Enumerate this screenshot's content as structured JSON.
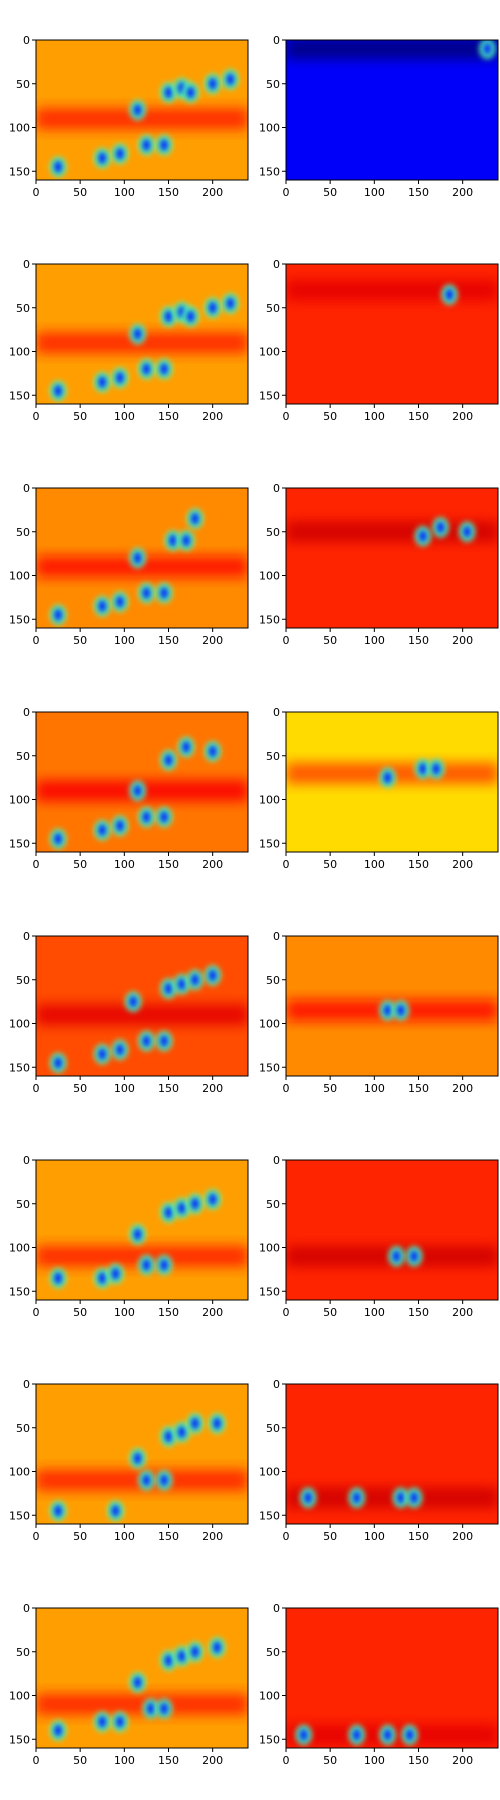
{
  "figure": {
    "rows": 8,
    "cols": 2,
    "x_ticks": [
      "0",
      "50",
      "100",
      "150",
      "200"
    ],
    "y_ticks": [
      "0",
      "50",
      "100",
      "150"
    ],
    "colormap": "jet"
  },
  "chart_data": {
    "type": "heatmap",
    "image_width": 240,
    "image_height": 160,
    "xlim": [
      0,
      240
    ],
    "ylim": [
      160,
      0
    ],
    "grid": false,
    "legend": "none",
    "panels": [
      {
        "row": 0,
        "col": 0,
        "background": 0.72,
        "band": {
          "y": 90,
          "strength": 0.12
        },
        "blobs": [
          [
            25,
            145
          ],
          [
            75,
            135
          ],
          [
            95,
            130
          ],
          [
            115,
            80
          ],
          [
            125,
            120
          ],
          [
            145,
            120
          ],
          [
            150,
            60
          ],
          [
            165,
            55
          ],
          [
            175,
            60
          ],
          [
            200,
            50
          ],
          [
            220,
            45
          ]
        ]
      },
      {
        "row": 0,
        "col": 1,
        "background": 0.12,
        "band": {
          "y": 10,
          "strength": -0.4
        },
        "blobs": [
          [
            228,
            10
          ]
        ]
      },
      {
        "row": 1,
        "col": 0,
        "background": 0.72,
        "band": {
          "y": 90,
          "strength": 0.12
        },
        "blobs": [
          [
            25,
            145
          ],
          [
            75,
            135
          ],
          [
            95,
            130
          ],
          [
            115,
            80
          ],
          [
            125,
            120
          ],
          [
            145,
            120
          ],
          [
            150,
            60
          ],
          [
            165,
            55
          ],
          [
            175,
            60
          ],
          [
            200,
            50
          ],
          [
            220,
            45
          ]
        ]
      },
      {
        "row": 1,
        "col": 1,
        "background": 0.84,
        "band": {
          "y": 30,
          "strength": 0.06
        },
        "blobs": [
          [
            185,
            35
          ]
        ]
      },
      {
        "row": 2,
        "col": 0,
        "background": 0.74,
        "band": {
          "y": 90,
          "strength": 0.12
        },
        "blobs": [
          [
            25,
            145
          ],
          [
            75,
            135
          ],
          [
            95,
            130
          ],
          [
            115,
            80
          ],
          [
            125,
            120
          ],
          [
            145,
            120
          ],
          [
            155,
            60
          ],
          [
            170,
            60
          ],
          [
            180,
            35
          ]
        ]
      },
      {
        "row": 2,
        "col": 1,
        "background": 0.84,
        "band": {
          "y": 50,
          "strength": 0.08
        },
        "blobs": [
          [
            155,
            55
          ],
          [
            175,
            45
          ],
          [
            205,
            50
          ]
        ]
      },
      {
        "row": 3,
        "col": 0,
        "background": 0.76,
        "band": {
          "y": 90,
          "strength": 0.12
        },
        "blobs": [
          [
            25,
            145
          ],
          [
            75,
            135
          ],
          [
            95,
            130
          ],
          [
            115,
            90
          ],
          [
            125,
            120
          ],
          [
            145,
            120
          ],
          [
            150,
            55
          ],
          [
            170,
            40
          ],
          [
            200,
            45
          ]
        ]
      },
      {
        "row": 3,
        "col": 1,
        "background": 0.66,
        "band": {
          "y": 70,
          "strength": 0.14
        },
        "blobs": [
          [
            115,
            75
          ],
          [
            155,
            65
          ],
          [
            170,
            65
          ]
        ]
      },
      {
        "row": 4,
        "col": 0,
        "background": 0.8,
        "band": {
          "y": 90,
          "strength": 0.1
        },
        "blobs": [
          [
            25,
            145
          ],
          [
            75,
            135
          ],
          [
            95,
            130
          ],
          [
            110,
            75
          ],
          [
            125,
            120
          ],
          [
            145,
            120
          ],
          [
            150,
            60
          ],
          [
            165,
            55
          ],
          [
            180,
            50
          ],
          [
            200,
            45
          ]
        ]
      },
      {
        "row": 4,
        "col": 1,
        "background": 0.74,
        "band": {
          "y": 85,
          "strength": 0.12
        },
        "blobs": [
          [
            115,
            85
          ],
          [
            130,
            85
          ]
        ]
      },
      {
        "row": 5,
        "col": 0,
        "background": 0.72,
        "band": {
          "y": 110,
          "strength": 0.12
        },
        "blobs": [
          [
            25,
            135
          ],
          [
            75,
            135
          ],
          [
            90,
            130
          ],
          [
            115,
            85
          ],
          [
            125,
            120
          ],
          [
            145,
            120
          ],
          [
            150,
            60
          ],
          [
            165,
            55
          ],
          [
            180,
            50
          ],
          [
            200,
            45
          ]
        ]
      },
      {
        "row": 5,
        "col": 1,
        "background": 0.84,
        "band": {
          "y": 110,
          "strength": 0.08
        },
        "blobs": [
          [
            125,
            110
          ],
          [
            145,
            110
          ]
        ]
      },
      {
        "row": 6,
        "col": 0,
        "background": 0.72,
        "band": {
          "y": 110,
          "strength": 0.12
        },
        "blobs": [
          [
            25,
            145
          ],
          [
            90,
            145
          ],
          [
            115,
            85
          ],
          [
            125,
            110
          ],
          [
            145,
            110
          ],
          [
            150,
            60
          ],
          [
            165,
            55
          ],
          [
            180,
            45
          ],
          [
            205,
            45
          ]
        ]
      },
      {
        "row": 6,
        "col": 1,
        "background": 0.84,
        "band": {
          "y": 130,
          "strength": 0.08
        },
        "blobs": [
          [
            25,
            130
          ],
          [
            80,
            130
          ],
          [
            130,
            130
          ],
          [
            145,
            130
          ]
        ]
      },
      {
        "row": 7,
        "col": 0,
        "background": 0.72,
        "band": {
          "y": 110,
          "strength": 0.12
        },
        "blobs": [
          [
            25,
            140
          ],
          [
            75,
            130
          ],
          [
            95,
            130
          ],
          [
            115,
            85
          ],
          [
            130,
            115
          ],
          [
            145,
            115
          ],
          [
            150,
            60
          ],
          [
            165,
            55
          ],
          [
            180,
            50
          ],
          [
            205,
            45
          ]
        ]
      },
      {
        "row": 7,
        "col": 1,
        "background": 0.84,
        "band": {
          "y": 145,
          "strength": 0.06
        },
        "blobs": [
          [
            20,
            145
          ],
          [
            80,
            145
          ],
          [
            115,
            145
          ],
          [
            140,
            145
          ]
        ]
      }
    ]
  }
}
